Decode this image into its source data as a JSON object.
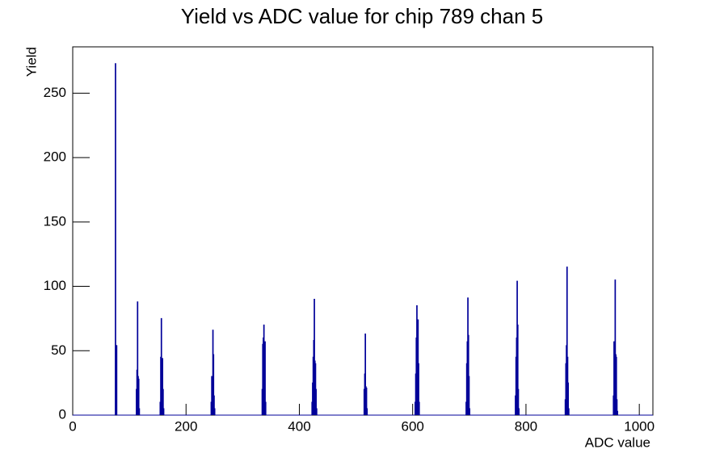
{
  "chart_data": {
    "type": "histogram",
    "title": "Yield vs ADC value for chip 789 chan 5",
    "x_label": "ADC value",
    "y_label": "Yield",
    "color": "#000099",
    "xlim": [
      0,
      1024
    ],
    "ylim": [
      0,
      286
    ],
    "xticks": [
      0,
      200,
      400,
      600,
      800,
      1000
    ],
    "yticks": [
      0,
      50,
      100,
      150,
      200,
      250
    ],
    "bins": [
      0,
      75,
      76,
      77,
      78,
      112,
      113,
      114,
      115,
      116,
      117,
      118,
      154,
      155,
      156,
      157,
      158,
      159,
      160,
      161,
      244,
      245,
      246,
      247,
      248,
      249,
      250,
      251,
      334,
      335,
      336,
      337,
      338,
      339,
      340,
      341,
      422,
      423,
      424,
      425,
      426,
      427,
      428,
      429,
      430,
      431,
      514,
      515,
      516,
      517,
      518,
      519,
      520,
      604,
      605,
      606,
      607,
      608,
      609,
      610,
      611,
      612,
      694,
      695,
      696,
      697,
      698,
      699,
      700,
      701,
      781,
      782,
      783,
      784,
      785,
      786,
      787,
      788,
      869,
      870,
      871,
      872,
      873,
      874,
      875,
      876,
      954,
      955,
      956,
      957,
      958,
      959,
      960,
      961,
      962,
      1024
    ],
    "values": [
      0,
      273,
      54,
      54,
      0,
      20,
      35,
      88,
      30,
      28,
      5,
      0,
      10,
      45,
      75,
      38,
      44,
      20,
      5,
      0,
      10,
      30,
      25,
      66,
      47,
      15,
      5,
      0,
      20,
      55,
      60,
      70,
      50,
      57,
      10,
      0,
      10,
      25,
      45,
      58,
      90,
      42,
      40,
      20,
      5,
      0,
      20,
      32,
      63,
      22,
      21,
      5,
      0,
      10,
      32,
      60,
      85,
      55,
      74,
      40,
      10,
      0,
      10,
      40,
      57,
      91,
      62,
      30,
      5,
      0,
      15,
      45,
      60,
      104,
      70,
      20,
      5,
      0,
      12,
      40,
      54,
      115,
      45,
      25,
      5,
      0,
      15,
      57,
      50,
      105,
      47,
      45,
      12,
      3,
      0
    ]
  }
}
